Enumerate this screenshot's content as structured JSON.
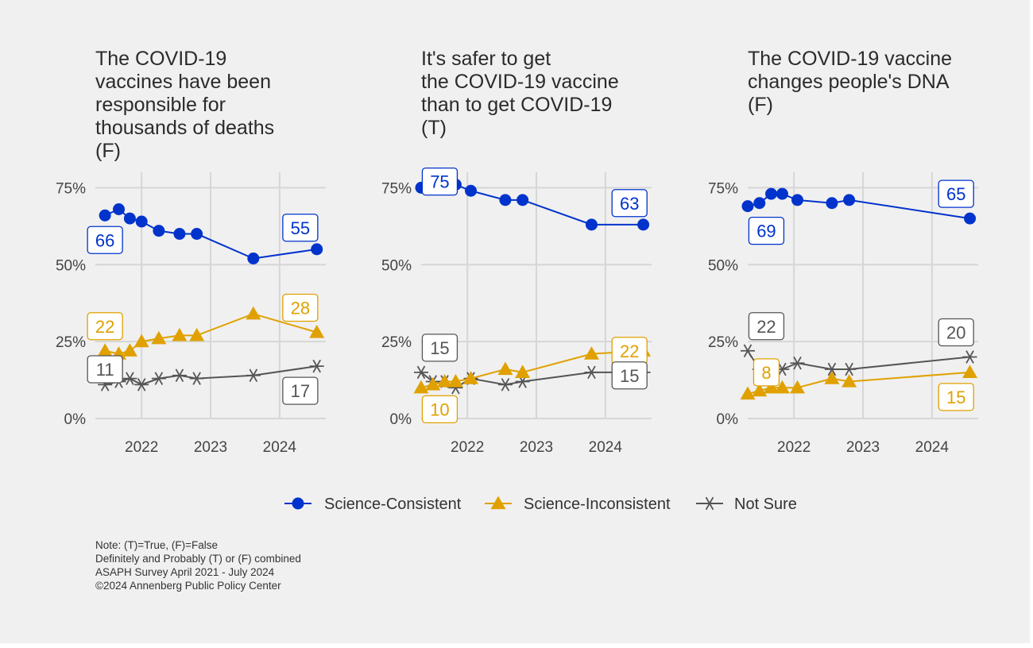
{
  "chart_data": {
    "type": "line",
    "ylim": [
      0,
      80
    ],
    "yticks": [
      0,
      25,
      50,
      75
    ],
    "ytick_labels": [
      "0%",
      "25%",
      "50%",
      "75%"
    ],
    "xlim": [
      2021.33,
      2024.67
    ],
    "xticks": [
      2022,
      2023,
      2024
    ],
    "xtick_labels": [
      "2022",
      "2023",
      "2024"
    ],
    "grid": true,
    "legend_position": "bottom",
    "series_meta": [
      {
        "name": "Science-Consistent",
        "color": "#0033cc",
        "marker": "circle"
      },
      {
        "name": "Science-Inconsistent",
        "color": "#e0a100",
        "marker": "triangle"
      },
      {
        "name": "Not Sure",
        "color": "#555555",
        "marker": "asterisk"
      }
    ],
    "panels": [
      {
        "title": "The COVID-19\nvaccines have been\nresponsible for\nthousands of deaths\n(F)",
        "series": [
          {
            "name": "Science-Consistent",
            "x": [
              2021.47,
              2021.67,
              2021.83,
              2022.0,
              2022.25,
              2022.55,
              2022.8,
              2023.62,
              2024.54
            ],
            "values": [
              66,
              68,
              65,
              64,
              61,
              60,
              60,
              52,
              55
            ]
          },
          {
            "name": "Science-Inconsistent",
            "x": [
              2021.47,
              2021.67,
              2021.83,
              2022.0,
              2022.25,
              2022.55,
              2022.8,
              2023.62,
              2024.54
            ],
            "values": [
              22,
              21,
              22,
              25,
              26,
              27,
              27,
              34,
              28
            ]
          },
          {
            "name": "Not Sure",
            "x": [
              2021.47,
              2021.67,
              2021.83,
              2022.0,
              2022.25,
              2022.55,
              2022.8,
              2023.62,
              2024.54
            ],
            "values": [
              11,
              12,
              13,
              11,
              13,
              14,
              13,
              14,
              17
            ]
          }
        ],
        "labels": [
          {
            "series": 0,
            "text": "66",
            "x": 2021.47,
            "y": 58
          },
          {
            "series": 0,
            "text": "55",
            "x": 2024.3,
            "y": 62
          },
          {
            "series": 1,
            "text": "22",
            "x": 2021.47,
            "y": 30
          },
          {
            "series": 1,
            "text": "28",
            "x": 2024.3,
            "y": 36
          },
          {
            "series": 2,
            "text": "11",
            "x": 2021.47,
            "y": 16
          },
          {
            "series": 2,
            "text": "17",
            "x": 2024.3,
            "y": 9
          }
        ]
      },
      {
        "title": "It's safer to get\nthe COVID-19 vaccine\nthan to get COVID-19\n(T)",
        "series": [
          {
            "name": "Science-Consistent",
            "x": [
              2021.33,
              2021.5,
              2021.67,
              2021.83,
              2022.05,
              2022.55,
              2022.8,
              2023.8,
              2024.55
            ],
            "values": [
              75,
              76,
              77,
              76,
              74,
              71,
              71,
              63,
              63
            ]
          },
          {
            "name": "Science-Inconsistent",
            "x": [
              2021.33,
              2021.5,
              2021.67,
              2021.83,
              2022.05,
              2022.55,
              2022.8,
              2023.8,
              2024.55
            ],
            "values": [
              10,
              11,
              12,
              12,
              13,
              16,
              15,
              21,
              22
            ]
          },
          {
            "name": "Not Sure",
            "x": [
              2021.33,
              2021.5,
              2021.67,
              2021.83,
              2022.05,
              2022.55,
              2022.8,
              2023.8,
              2024.55
            ],
            "values": [
              15,
              12,
              12,
              10,
              13,
              11,
              12,
              15,
              15
            ]
          }
        ],
        "labels": [
          {
            "series": 0,
            "text": "75",
            "x": 2021.6,
            "y": 77
          },
          {
            "series": 0,
            "text": "63",
            "x": 2024.35,
            "y": 70
          },
          {
            "series": 1,
            "text": "10",
            "x": 2021.6,
            "y": 3
          },
          {
            "series": 1,
            "text": "22",
            "x": 2024.35,
            "y": 22
          },
          {
            "series": 2,
            "text": "15",
            "x": 2021.6,
            "y": 23
          },
          {
            "series": 2,
            "text": "15",
            "x": 2024.35,
            "y": 14
          }
        ]
      },
      {
        "title": "The COVID-19 vaccine\nchanges people's DNA\n(F)",
        "series": [
          {
            "name": "Science-Consistent",
            "x": [
              2021.33,
              2021.5,
              2021.67,
              2021.83,
              2022.05,
              2022.55,
              2022.8,
              2024.55
            ],
            "values": [
              69,
              70,
              73,
              73,
              71,
              70,
              71,
              65
            ]
          },
          {
            "name": "Science-Inconsistent",
            "x": [
              2021.33,
              2021.5,
              2021.67,
              2021.83,
              2022.05,
              2022.55,
              2022.8,
              2024.55
            ],
            "values": [
              8,
              9,
              10,
              10,
              10,
              13,
              12,
              15
            ]
          },
          {
            "name": "Not Sure",
            "x": [
              2021.33,
              2021.5,
              2021.67,
              2021.83,
              2022.05,
              2022.55,
              2022.8,
              2024.55
            ],
            "values": [
              22,
              16,
              16,
              16,
              18,
              16,
              16,
              20
            ]
          }
        ],
        "labels": [
          {
            "series": 0,
            "text": "69",
            "x": 2021.6,
            "y": 61
          },
          {
            "series": 0,
            "text": "65",
            "x": 2024.35,
            "y": 73
          },
          {
            "series": 1,
            "text": "8",
            "x": 2021.6,
            "y": 15
          },
          {
            "series": 1,
            "text": "15",
            "x": 2024.35,
            "y": 7
          },
          {
            "series": 2,
            "text": "22",
            "x": 2021.6,
            "y": 30
          },
          {
            "series": 2,
            "text": "20",
            "x": 2024.35,
            "y": 28
          }
        ]
      }
    ]
  },
  "notes": [
    "Note: (T)=True, (F)=False",
    "Definitely and Probably (T) or (F) combined",
    "ASAPH Survey April 2021 - July 2024",
    "©2024 Annenberg Public Policy Center"
  ]
}
